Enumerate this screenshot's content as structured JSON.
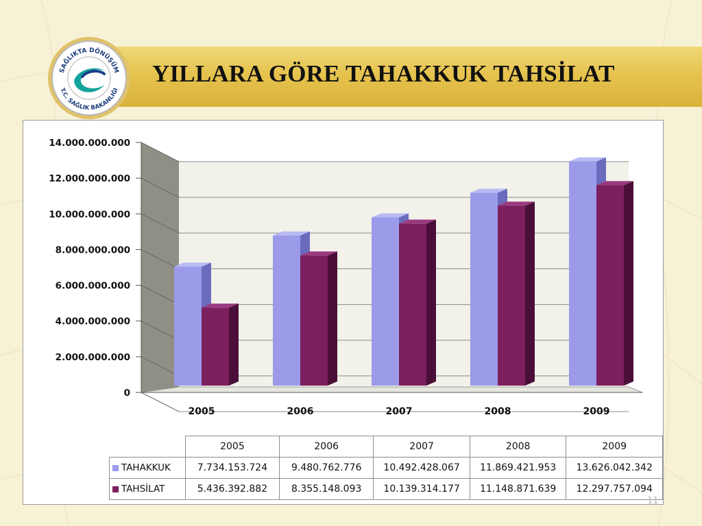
{
  "slide": {
    "title": "YILLARA GÖRE TAHAKKUK TAHSİLAT",
    "page_number": "11",
    "logo": {
      "icon": "ministry-seal",
      "text_top": "SAĞLIKTA DÖNÜŞÜM",
      "text_bottom": "T.C. SAĞLIK BAKANLIĞI"
    }
  },
  "chart_data": {
    "type": "bar",
    "categories": [
      "2005",
      "2006",
      "2007",
      "2008",
      "2009"
    ],
    "series": [
      {
        "name": "TAHAKKUK",
        "color": "#9b9bea",
        "values": [
          7734153724,
          9480762776,
          10492428067,
          11869421953,
          13626042342
        ]
      },
      {
        "name": "TAHSİLAT",
        "color": "#7b1f5e",
        "values": [
          5436392882,
          8355148093,
          10139314177,
          11148871639,
          12297757094
        ]
      }
    ],
    "ylim": [
      0,
      14000000000
    ],
    "yticks": [
      {
        "value": 0,
        "label": "0"
      },
      {
        "value": 2000000000,
        "label": "2.000.000.000"
      },
      {
        "value": 4000000000,
        "label": "4.000.000.000"
      },
      {
        "value": 6000000000,
        "label": "6.000.000.000"
      },
      {
        "value": 8000000000,
        "label": "8.000.000.000"
      },
      {
        "value": 10000000000,
        "label": "10.000.000.000"
      },
      {
        "value": 12000000000,
        "label": "12.000.000.000"
      },
      {
        "value": 14000000000,
        "label": "14.000.000.000"
      }
    ],
    "grid": true,
    "legend": "data-table-below",
    "table": {
      "headers": [
        "2005",
        "2006",
        "2007",
        "2008",
        "2009"
      ],
      "rows": [
        {
          "label": "TAHAKKUK",
          "values": [
            "7.734.153.724",
            "9.480.762.776",
            "10.492.428.067",
            "11.869.421.953",
            "13.626.042.342"
          ]
        },
        {
          "label": "TAHSİLAT",
          "values": [
            "5.436.392.882",
            "8.355.148.093",
            "10.139.314.177",
            "11.148.871.639",
            "12.297.757.094"
          ]
        }
      ]
    }
  }
}
